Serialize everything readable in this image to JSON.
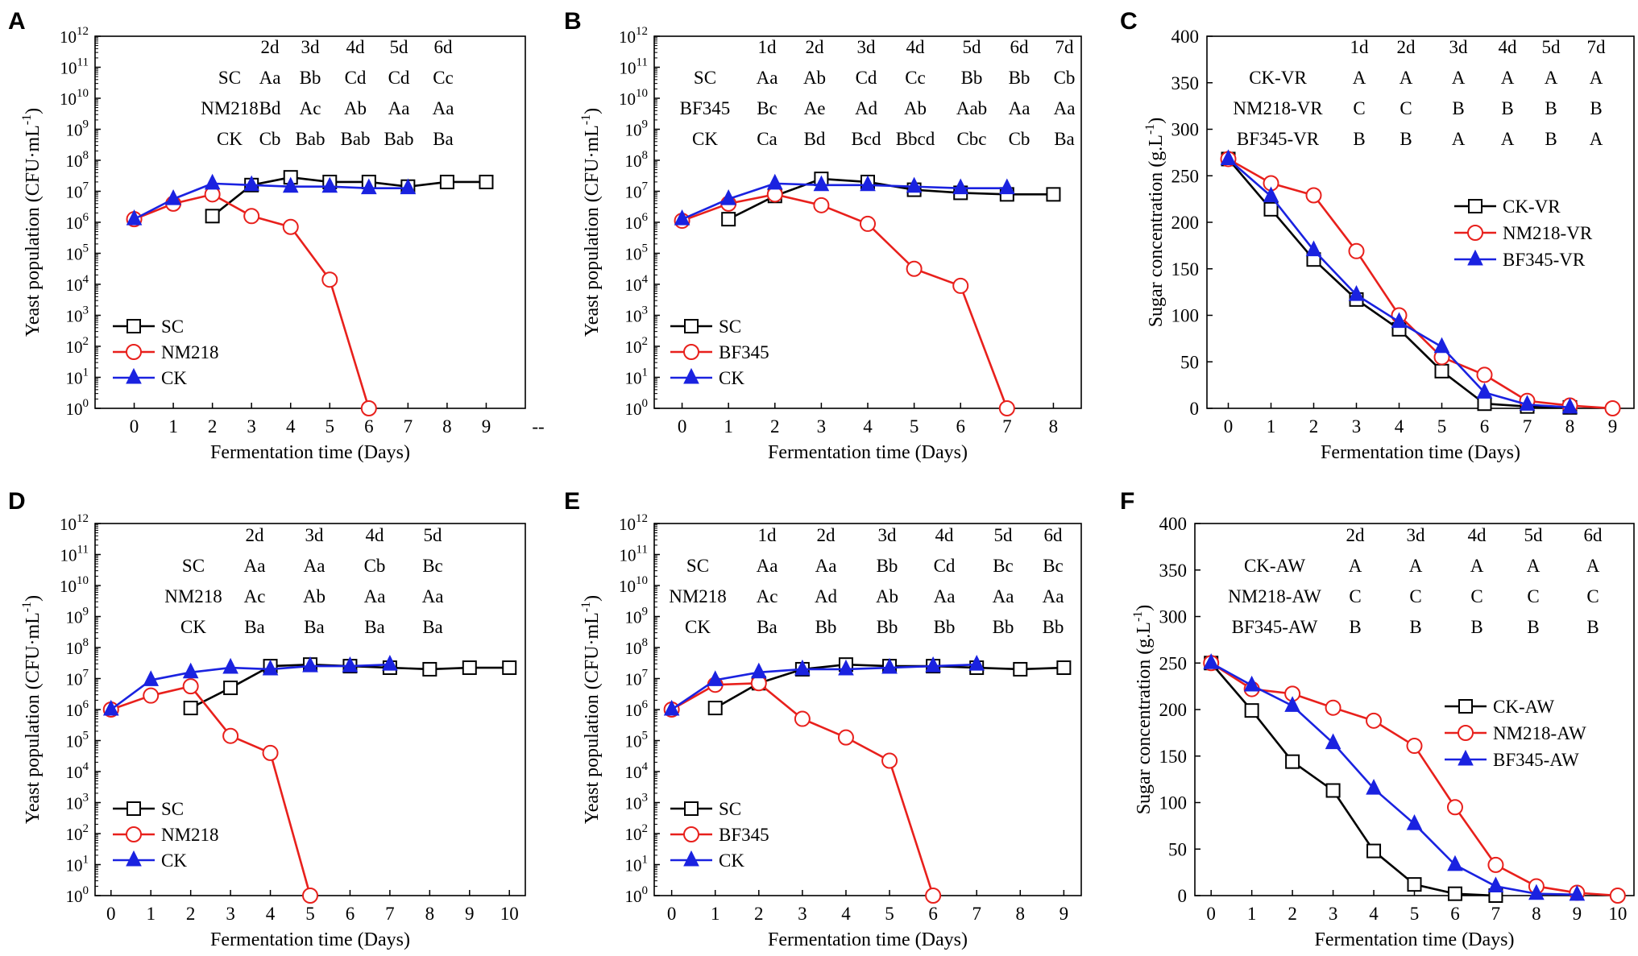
{
  "figure": {
    "width": 2033,
    "height": 1187
  },
  "chart_data": [
    {
      "panel": "A",
      "type": "line",
      "yscale": "log",
      "ylabel": "Yeast population (CFU·mL⁻¹)",
      "xlabel": "Fermentation time (Days)",
      "xlim": [
        -1,
        10
      ],
      "xticks": [
        0,
        1,
        2,
        3,
        4,
        5,
        6,
        7,
        8,
        9
      ],
      "extra_tick_label": "--",
      "ylim_exp": [
        0,
        12
      ],
      "series": [
        {
          "name": "SC",
          "color": "#000000",
          "marker": "square",
          "x": [
            2,
            3,
            4,
            5,
            6,
            7,
            8,
            9
          ],
          "y_exp": [
            6.2,
            7.2,
            7.45,
            7.3,
            7.3,
            7.15,
            7.3,
            7.3
          ]
        },
        {
          "name": "NM218",
          "color": "#e8201c",
          "marker": "circle",
          "x": [
            0,
            1,
            2,
            3,
            4,
            5,
            6
          ],
          "y_exp": [
            6.1,
            6.6,
            6.9,
            6.2,
            5.85,
            4.15,
            0
          ]
        },
        {
          "name": "CK",
          "color": "#1a22e0",
          "marker": "triangle",
          "x": [
            0,
            1,
            2,
            3,
            4,
            5,
            6,
            7
          ],
          "y_exp": [
            6.1,
            6.75,
            7.25,
            7.2,
            7.15,
            7.15,
            7.1,
            7.1
          ]
        }
      ],
      "table": {
        "headers": [
          "2d",
          "3d",
          "4d",
          "5d",
          "6d"
        ],
        "rows": [
          {
            "label": "SC",
            "cells": [
              "Aa",
              "Bb",
              "Cd",
              "Cd",
              "Cc"
            ]
          },
          {
            "label": "NM218",
            "cells": [
              "Bd",
              "Ac",
              "Ab",
              "Aa",
              "Aa"
            ]
          },
          {
            "label": "CK",
            "cells": [
              "Cb",
              "Bab",
              "Bab",
              "Bab",
              "Ba"
            ]
          }
        ]
      }
    },
    {
      "panel": "B",
      "type": "line",
      "yscale": "log",
      "ylabel": "Yeast population (CFU·mL⁻¹)",
      "xlabel": "Fermentation time (Days)",
      "xlim": [
        -0.6,
        8.6
      ],
      "xticks": [
        0,
        1,
        2,
        3,
        4,
        5,
        6,
        7,
        8
      ],
      "ylim_exp": [
        0,
        12
      ],
      "series": [
        {
          "name": "SC",
          "color": "#000000",
          "marker": "square",
          "x": [
            1,
            2,
            3,
            4,
            5,
            6,
            7,
            8
          ],
          "y_exp": [
            6.1,
            6.85,
            7.4,
            7.3,
            7.05,
            6.95,
            6.9,
            6.9
          ]
        },
        {
          "name": "BF345",
          "color": "#e8201c",
          "marker": "circle",
          "x": [
            0,
            1,
            2,
            3,
            4,
            5,
            6,
            7
          ],
          "y_exp": [
            6.05,
            6.6,
            6.9,
            6.55,
            5.95,
            4.5,
            3.95,
            0
          ]
        },
        {
          "name": "CK",
          "color": "#1a22e0",
          "marker": "triangle",
          "x": [
            0,
            1,
            2,
            3,
            4,
            5,
            6,
            7
          ],
          "y_exp": [
            6.1,
            6.75,
            7.25,
            7.2,
            7.2,
            7.15,
            7.1,
            7.1
          ]
        }
      ],
      "table": {
        "headers": [
          "1d",
          "2d",
          "3d",
          "4d",
          "5d",
          "6d",
          "7d"
        ],
        "rows": [
          {
            "label": "SC",
            "cells": [
              "Aa",
              "Ab",
              "Cd",
              "Cc",
              "Bb",
              "Bb",
              "Cb"
            ]
          },
          {
            "label": "BF345",
            "cells": [
              "Bc",
              "Ae",
              "Ad",
              "Ab",
              "Aab",
              "Aa",
              "Aa"
            ]
          },
          {
            "label": "CK",
            "cells": [
              "Ca",
              "Bd",
              "Bcd",
              "Bbcd",
              "Cbc",
              "Cb",
              "Ba"
            ]
          }
        ]
      }
    },
    {
      "panel": "C",
      "type": "line",
      "yscale": "linear",
      "ylabel": "Sugar concentration (g.L⁻¹)",
      "xlabel": "Fermentation time (Days)",
      "xlim": [
        -0.5,
        9.5
      ],
      "xticks": [
        0,
        1,
        2,
        3,
        4,
        5,
        6,
        7,
        8,
        9
      ],
      "ylim": [
        0,
        400
      ],
      "yticks": [
        0,
        50,
        100,
        150,
        200,
        250,
        300,
        350,
        400
      ],
      "series": [
        {
          "name": "CK-VR",
          "color": "#000000",
          "marker": "square",
          "x": [
            0,
            1,
            2,
            3,
            4,
            5,
            6,
            7,
            8
          ],
          "y": [
            268,
            214,
            160,
            117,
            85,
            40,
            5,
            2,
            1
          ]
        },
        {
          "name": "NM218-VR",
          "color": "#e8201c",
          "marker": "circle",
          "x": [
            0,
            1,
            2,
            3,
            4,
            5,
            6,
            7,
            8,
            9
          ],
          "y": [
            268,
            242,
            229,
            169,
            100,
            55,
            36,
            8,
            3,
            0
          ]
        },
        {
          "name": "BF345-VR",
          "color": "#1a22e0",
          "marker": "triangle",
          "x": [
            0,
            1,
            2,
            3,
            4,
            5,
            6,
            7,
            8
          ],
          "y": [
            268,
            228,
            170,
            122,
            93,
            66,
            17,
            4,
            1
          ]
        }
      ],
      "table": {
        "headers": [
          "1d",
          "2d",
          "3d",
          "4d",
          "5d",
          "7d"
        ],
        "rows": [
          {
            "label": "CK-VR",
            "cells": [
              "A",
              "A",
              "A",
              "A",
              "A",
              "A"
            ]
          },
          {
            "label": "NM218-VR",
            "cells": [
              "C",
              "C",
              "B",
              "B",
              "B",
              "B"
            ]
          },
          {
            "label": "BF345-VR",
            "cells": [
              "B",
              "B",
              "A",
              "A",
              "B",
              "A"
            ]
          }
        ]
      }
    },
    {
      "panel": "D",
      "type": "line",
      "yscale": "log",
      "ylabel": "Yeast population (CFU·mL⁻¹)",
      "xlabel": "Fermentation time (Days)",
      "xlim": [
        -0.4,
        10.4
      ],
      "xticks": [
        0,
        1,
        2,
        3,
        4,
        5,
        6,
        7,
        8,
        9,
        10
      ],
      "ylim_exp": [
        0,
        12
      ],
      "series": [
        {
          "name": "SC",
          "color": "#000000",
          "marker": "square",
          "x": [
            2,
            3,
            4,
            5,
            6,
            7,
            8,
            9,
            10
          ],
          "y_exp": [
            6.05,
            6.7,
            7.4,
            7.45,
            7.4,
            7.35,
            7.3,
            7.35,
            7.35
          ]
        },
        {
          "name": "NM218",
          "color": "#e8201c",
          "marker": "circle",
          "x": [
            0,
            1,
            2,
            3,
            4,
            5
          ],
          "y_exp": [
            6.0,
            6.45,
            6.75,
            5.15,
            4.6,
            0
          ]
        },
        {
          "name": "CK",
          "color": "#1a22e0",
          "marker": "triangle",
          "x": [
            0,
            1,
            2,
            3,
            4,
            5,
            6,
            7
          ],
          "y_exp": [
            6.0,
            6.95,
            7.2,
            7.35,
            7.3,
            7.4,
            7.4,
            7.45
          ]
        }
      ],
      "table": {
        "headers": [
          "2d",
          "3d",
          "4d",
          "5d"
        ],
        "rows": [
          {
            "label": "SC",
            "cells": [
              "Aa",
              "Aa",
              "Cb",
              "Bc"
            ]
          },
          {
            "label": "NM218",
            "cells": [
              "Ac",
              "Ab",
              "Aa",
              "Aa"
            ]
          },
          {
            "label": "CK",
            "cells": [
              "Ba",
              "Ba",
              "Ba",
              "Ba"
            ]
          }
        ]
      }
    },
    {
      "panel": "E",
      "type": "line",
      "yscale": "log",
      "ylabel": "Yeast population (CFU·mL⁻¹)",
      "xlabel": "Fermentation time (Days)",
      "xlim": [
        -0.4,
        9.4
      ],
      "xticks": [
        0,
        1,
        2,
        3,
        4,
        5,
        6,
        7,
        8,
        9
      ],
      "ylim_exp": [
        0,
        12
      ],
      "series": [
        {
          "name": "SC",
          "color": "#000000",
          "marker": "square",
          "x": [
            1,
            2,
            3,
            4,
            5,
            6,
            7,
            8,
            9
          ],
          "y_exp": [
            6.05,
            6.85,
            7.3,
            7.45,
            7.4,
            7.4,
            7.35,
            7.3,
            7.35
          ]
        },
        {
          "name": "BF345",
          "color": "#e8201c",
          "marker": "circle",
          "x": [
            0,
            1,
            2,
            3,
            4,
            5,
            6
          ],
          "y_exp": [
            6.0,
            6.8,
            6.85,
            5.7,
            5.1,
            4.35,
            0
          ]
        },
        {
          "name": "CK",
          "color": "#1a22e0",
          "marker": "triangle",
          "x": [
            0,
            1,
            2,
            3,
            4,
            5,
            6,
            7
          ],
          "y_exp": [
            6.0,
            6.95,
            7.2,
            7.3,
            7.3,
            7.35,
            7.4,
            7.45
          ]
        }
      ],
      "table": {
        "headers": [
          "1d",
          "2d",
          "3d",
          "4d",
          "5d",
          "6d"
        ],
        "rows": [
          {
            "label": "SC",
            "cells": [
              "Aa",
              "Aa",
              "Bb",
              "Cd",
              "Bc",
              "Bc"
            ]
          },
          {
            "label": "NM218",
            "cells": [
              "Ac",
              "Ad",
              "Ab",
              "Aa",
              "Aa",
              "Aa"
            ]
          },
          {
            "label": "CK",
            "cells": [
              "Ba",
              "Bb",
              "Bb",
              "Bb",
              "Bb",
              "Bb"
            ]
          }
        ]
      }
    },
    {
      "panel": "F",
      "type": "line",
      "yscale": "linear",
      "ylabel": "Sugar concentration (g.L⁻¹)",
      "xlabel": "Fermentation time (Days)",
      "xlim": [
        -0.4,
        10.4
      ],
      "xticks": [
        0,
        1,
        2,
        3,
        4,
        5,
        6,
        7,
        8,
        9,
        10
      ],
      "ylim": [
        0,
        400
      ],
      "yticks": [
        0,
        50,
        100,
        150,
        200,
        250,
        300,
        350,
        400
      ],
      "series": [
        {
          "name": "CK-AW",
          "color": "#000000",
          "marker": "square",
          "x": [
            0,
            1,
            2,
            3,
            4,
            5,
            6,
            7
          ],
          "y": [
            250,
            199,
            144,
            113,
            48,
            12,
            2,
            0
          ]
        },
        {
          "name": "NM218-AW",
          "color": "#e8201c",
          "marker": "circle",
          "x": [
            0,
            1,
            2,
            3,
            4,
            5,
            6,
            7,
            8,
            9,
            10
          ],
          "y": [
            250,
            222,
            217,
            202,
            188,
            161,
            95,
            33,
            10,
            3,
            0
          ]
        },
        {
          "name": "BF345-AW",
          "color": "#1a22e0",
          "marker": "triangle",
          "x": [
            0,
            1,
            2,
            3,
            4,
            5,
            6,
            7,
            8,
            9
          ],
          "y": [
            250,
            226,
            204,
            164,
            115,
            77,
            33,
            10,
            2,
            1
          ]
        }
      ],
      "table": {
        "headers": [
          "2d",
          "3d",
          "4d",
          "5d",
          "6d"
        ],
        "rows": [
          {
            "label": "CK-AW",
            "cells": [
              "A",
              "A",
              "A",
              "A",
              "A"
            ]
          },
          {
            "label": "NM218-AW",
            "cells": [
              "C",
              "C",
              "C",
              "C",
              "C"
            ]
          },
          {
            "label": "BF345-AW",
            "cells": [
              "B",
              "B",
              "B",
              "B",
              "B"
            ]
          }
        ]
      }
    }
  ]
}
